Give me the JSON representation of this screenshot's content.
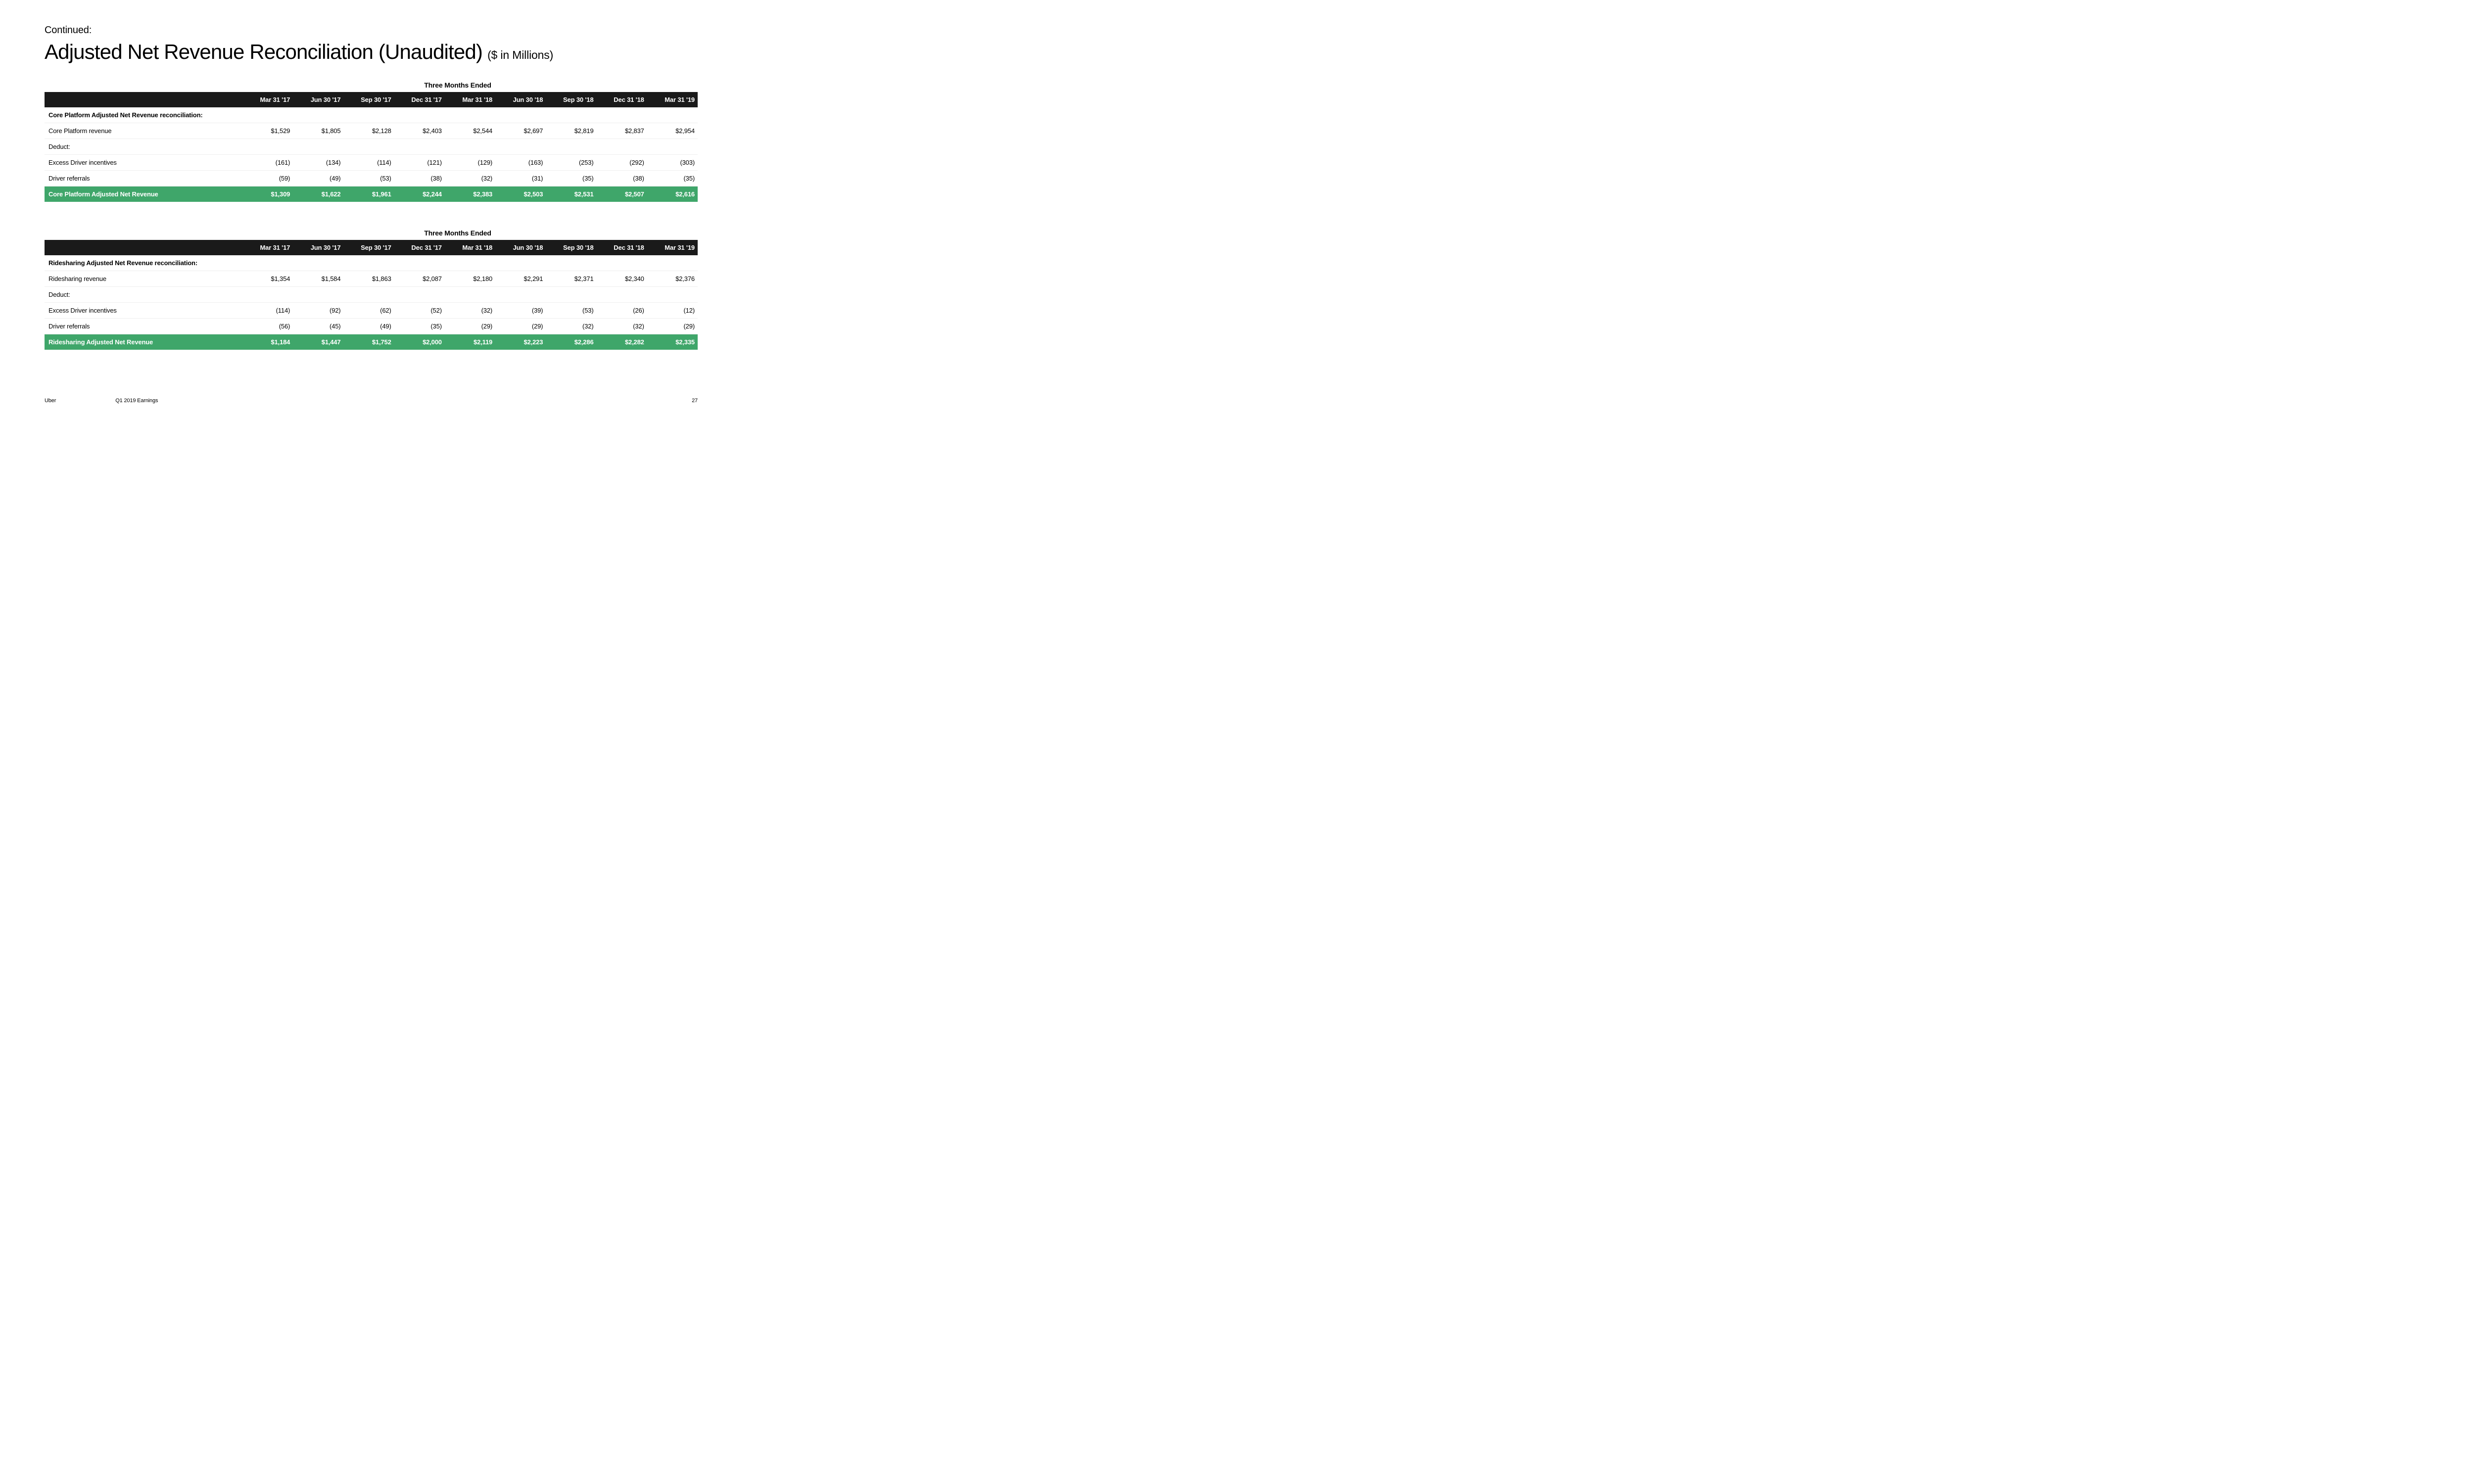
{
  "pretitle": "Continued:",
  "title": "Adjusted Net Revenue Reconciliation (Unaudited)",
  "subtitle": "($ in Millions)",
  "footer": {
    "company": "Uber",
    "description": "Q1 2019 Earnings",
    "page": "27"
  },
  "styling": {
    "header_bg": "#1a1a1a",
    "header_fg": "#ffffff",
    "highlight_bg": "#3fa66a",
    "highlight_fg": "#ffffff",
    "row_border": "#eeeeee",
    "body_fontsize": 13,
    "title_fontsize": 42,
    "subtitle_fontsize": 23
  },
  "tables": [
    {
      "caption": "Three Months Ended",
      "columns": [
        "Mar 31 '17",
        "Jun 30 '17",
        "Sep 30 '17",
        "Dec 31 '17",
        "Mar 31 '18",
        "Jun 30 '18",
        "Sep 30 '18",
        "Dec 31 '18",
        "Mar 31 '19"
      ],
      "rows": [
        {
          "type": "section",
          "label": "Core Platform Adjusted Net Revenue reconciliation:",
          "values": [
            "",
            "",
            "",
            "",
            "",
            "",
            "",
            "",
            ""
          ]
        },
        {
          "type": "data",
          "label": "Core Platform revenue",
          "values": [
            "$1,529",
            "$1,805",
            "$2,128",
            "$2,403",
            "$2,544",
            "$2,697",
            "$2,819",
            "$2,837",
            "$2,954"
          ]
        },
        {
          "type": "data",
          "label": "Deduct:",
          "values": [
            "",
            "",
            "",
            "",
            "",
            "",
            "",
            "",
            ""
          ]
        },
        {
          "type": "data",
          "label": "Excess Driver incentives",
          "values": [
            "(161)",
            "(134)",
            "(114)",
            "(121)",
            "(129)",
            "(163)",
            "(253)",
            "(292)",
            "(303)"
          ]
        },
        {
          "type": "data",
          "label": "Driver referrals",
          "values": [
            "(59)",
            "(49)",
            "(53)",
            "(38)",
            "(32)",
            "(31)",
            "(35)",
            "(38)",
            "(35)"
          ]
        },
        {
          "type": "highlight",
          "label": "Core Platform Adjusted Net Revenue",
          "values": [
            "$1,309",
            "$1,622",
            "$1,961",
            "$2,244",
            "$2,383",
            "$2,503",
            "$2,531",
            "$2,507",
            "$2,616"
          ]
        }
      ]
    },
    {
      "caption": "Three Months Ended",
      "columns": [
        "Mar 31 '17",
        "Jun 30 '17",
        "Sep 30 '17",
        "Dec 31 '17",
        "Mar 31 '18",
        "Jun 30 '18",
        "Sep 30 '18",
        "Dec 31 '18",
        "Mar 31 '19"
      ],
      "rows": [
        {
          "type": "section",
          "label": "Ridesharing Adjusted Net Revenue reconciliation:",
          "values": [
            "",
            "",
            "",
            "",
            "",
            "",
            "",
            "",
            ""
          ]
        },
        {
          "type": "data",
          "label": "Ridesharing revenue",
          "values": [
            "$1,354",
            "$1,584",
            "$1,863",
            "$2,087",
            "$2,180",
            "$2,291",
            "$2,371",
            "$2,340",
            "$2,376"
          ]
        },
        {
          "type": "data",
          "label": "Deduct:",
          "values": [
            "",
            "",
            "",
            "",
            "",
            "",
            "",
            "",
            ""
          ]
        },
        {
          "type": "data",
          "label": "Excess Driver incentives",
          "values": [
            "(114)",
            "(92)",
            "(62)",
            "(52)",
            "(32)",
            "(39)",
            "(53)",
            "(26)",
            "(12)"
          ]
        },
        {
          "type": "data",
          "label": "Driver referrals",
          "values": [
            "(56)",
            "(45)",
            "(49)",
            "(35)",
            "(29)",
            "(29)",
            "(32)",
            "(32)",
            "(29)"
          ]
        },
        {
          "type": "highlight",
          "label": "Ridesharing Adjusted Net Revenue",
          "values": [
            "$1,184",
            "$1,447",
            "$1,752",
            "$2,000",
            "$2,119",
            "$2,223",
            "$2,286",
            "$2,282",
            "$2,335"
          ]
        }
      ]
    }
  ]
}
